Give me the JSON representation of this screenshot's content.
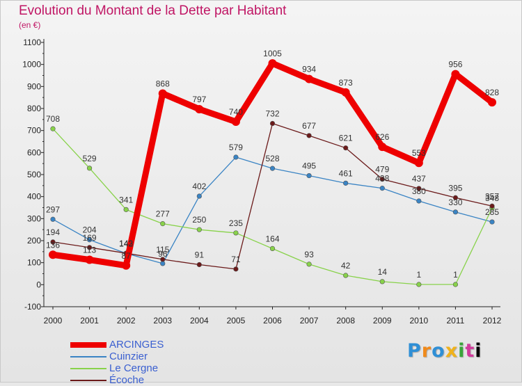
{
  "title": "Evolution du Montant de la Dette par Habitant",
  "unit": "(en €)",
  "logo": {
    "letters": [
      "P",
      "r",
      "o",
      "x",
      "i",
      "t",
      "i"
    ]
  },
  "chart_data": {
    "type": "line",
    "title": "Evolution du Montant de la Dette par Habitant",
    "ylabel": "(en €)",
    "xlabel": "",
    "ylim": [
      -100,
      1100
    ],
    "yticks": [
      -100,
      0,
      100,
      200,
      300,
      400,
      500,
      600,
      700,
      800,
      900,
      1000,
      1100
    ],
    "grid": false,
    "legend_position": "bottom-left",
    "x": [
      "2000",
      "2001",
      "2002",
      "2003",
      "2004",
      "2005",
      "2006",
      "2007",
      "2008",
      "2009",
      "2010",
      "2011",
      "2012"
    ],
    "series": [
      {
        "name": "ARCINGES",
        "color": "#ee0000",
        "values": [
          136,
          113,
          87,
          868,
          797,
          740,
          1005,
          934,
          873,
          626,
          553,
          956,
          828
        ]
      },
      {
        "name": "Cuinzier",
        "color": "#3a84c4",
        "values": [
          297,
          204,
          142,
          96,
          402,
          579,
          528,
          495,
          461,
          438,
          380,
          330,
          285
        ]
      },
      {
        "name": "Le Cergne",
        "color": "#88d24a",
        "values": [
          708,
          529,
          341,
          277,
          250,
          235,
          164,
          93,
          42,
          14,
          1,
          1,
          348
        ]
      },
      {
        "name": "Écoche",
        "color": "#6b1a1a",
        "values": [
          194,
          169,
          143,
          115,
          91,
          71,
          732,
          677,
          621,
          479,
          437,
          395,
          357
        ]
      }
    ]
  }
}
